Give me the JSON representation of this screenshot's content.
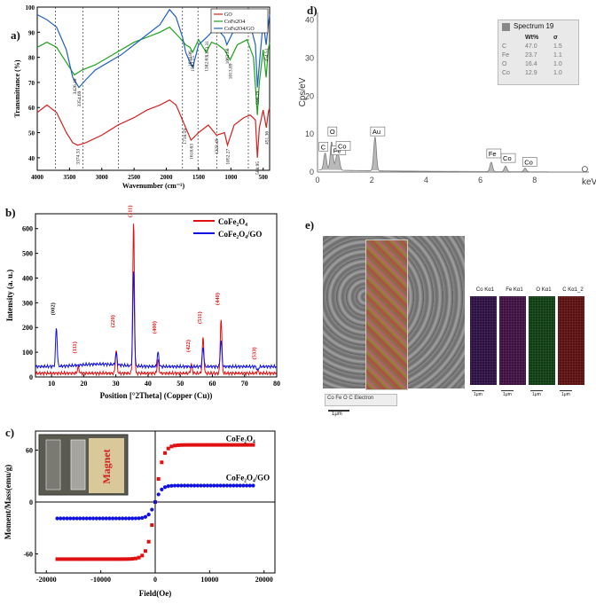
{
  "panels": {
    "a": "a)",
    "b": "b)",
    "c": "c)",
    "d": "d)",
    "e": "e)"
  },
  "chart_data": [
    {
      "id": "a",
      "type": "line",
      "xlabel": "Wavenumber (cm⁻¹)",
      "ylabel": "Transmittance (%)",
      "xlim": [
        4000,
        400
      ],
      "ylim": [
        35,
        100
      ],
      "x_ticks": [
        4000,
        3500,
        3000,
        2500,
        2000,
        1500,
        1000,
        500
      ],
      "y_ticks": [
        40,
        50,
        60,
        70,
        80,
        90,
        100
      ],
      "legend": [
        "GO",
        "CoFe2O4",
        "CoFe2O4/GO"
      ],
      "dashed_lines": [
        3720,
        3290,
        2740,
        1750,
        1510,
        1220,
        730
      ],
      "series": [
        {
          "name": "GO",
          "color": "#d62020",
          "points": [
            [
              4000,
              58
            ],
            [
              3850,
              61
            ],
            [
              3700,
              58
            ],
            [
              3550,
              50
            ],
            [
              3450,
              46
            ],
            [
              3374,
              45
            ],
            [
              3250,
              46
            ],
            [
              3000,
              49
            ],
            [
              2750,
              53
            ],
            [
              2500,
              56
            ],
            [
              2300,
              59
            ],
            [
              2100,
              61
            ],
            [
              1950,
              63
            ],
            [
              1850,
              61
            ],
            [
              1750,
              55
            ],
            [
              1718,
              53
            ],
            [
              1650,
              49
            ],
            [
              1618,
              47
            ],
            [
              1500,
              50
            ],
            [
              1350,
              53
            ],
            [
              1222,
              49
            ],
            [
              1100,
              50
            ],
            [
              1052,
              45
            ],
            [
              950,
              53
            ],
            [
              800,
              56
            ],
            [
              700,
              57
            ],
            [
              620,
              55
            ],
            [
              589,
              40
            ],
            [
              560,
              52
            ],
            [
              500,
              59
            ],
            [
              451,
              52
            ],
            [
              420,
              58
            ],
            [
              400,
              60
            ]
          ]
        },
        {
          "name": "CoFe2O4",
          "color": "#1aa21a",
          "points": [
            [
              4000,
              84
            ],
            [
              3850,
              86
            ],
            [
              3700,
              84
            ],
            [
              3550,
              78
            ],
            [
              3426,
              73
            ],
            [
              3300,
              75
            ],
            [
              3100,
              77
            ],
            [
              2900,
              80
            ],
            [
              2700,
              83
            ],
            [
              2500,
              86
            ],
            [
              2300,
              88
            ],
            [
              2100,
              90
            ],
            [
              1950,
              92
            ],
            [
              1800,
              88
            ],
            [
              1700,
              85
            ],
            [
              1634,
              84
            ],
            [
              1593,
              82
            ],
            [
              1500,
              87
            ],
            [
              1383,
              82
            ],
            [
              1300,
              86
            ],
            [
              1200,
              85
            ],
            [
              1100,
              83
            ],
            [
              1013,
              79
            ],
            [
              900,
              85
            ],
            [
              750,
              87
            ],
            [
              650,
              80
            ],
            [
              590,
              57
            ],
            [
              560,
              70
            ],
            [
              500,
              83
            ],
            [
              454,
              72
            ],
            [
              420,
              83
            ],
            [
              400,
              86
            ]
          ]
        },
        {
          "name": "CoFe2O4/GO",
          "color": "#2060c0",
          "points": [
            [
              4000,
              97
            ],
            [
              3850,
              95
            ],
            [
              3700,
              92
            ],
            [
              3550,
              83
            ],
            [
              3450,
              72
            ],
            [
              3354,
              68
            ],
            [
              3250,
              71
            ],
            [
              3100,
              75
            ],
            [
              2900,
              78
            ],
            [
              2700,
              81
            ],
            [
              2500,
              85
            ],
            [
              2300,
              89
            ],
            [
              2100,
              93
            ],
            [
              1950,
              99
            ],
            [
              1850,
              96
            ],
            [
              1750,
              88
            ],
            [
              1700,
              82
            ],
            [
              1634,
              78
            ],
            [
              1590,
              76
            ],
            [
              1500,
              85
            ],
            [
              1373,
              88
            ],
            [
              1300,
              90
            ],
            [
              1200,
              91
            ],
            [
              1100,
              88
            ],
            [
              1062,
              85
            ],
            [
              950,
              91
            ],
            [
              800,
              95
            ],
            [
              700,
              93
            ],
            [
              620,
              85
            ],
            [
              590,
              68
            ],
            [
              550,
              80
            ],
            [
              500,
              94
            ],
            [
              454,
              85
            ],
            [
              420,
              93
            ],
            [
              400,
              97
            ]
          ]
        }
      ],
      "annotations": [
        {
          "text": "3426.40",
          "x": 3426,
          "y": 73
        },
        {
          "text": "3354.69",
          "x": 3354,
          "y": 68
        },
        {
          "text": "3374.33",
          "x": 3374,
          "y": 45
        },
        {
          "text": "1634.86",
          "x": 1634,
          "y": 84
        },
        {
          "text": "1593.15",
          "x": 1593,
          "y": 82
        },
        {
          "text": "1373.31",
          "x": 1373,
          "y": 88
        },
        {
          "text": "1382.63",
          "x": 1383,
          "y": 82
        },
        {
          "text": "1062.68",
          "x": 1062,
          "y": 85
        },
        {
          "text": "1013.89",
          "x": 1013,
          "y": 79
        },
        {
          "text": "590.29",
          "x": 590,
          "y": 68
        },
        {
          "text": "454.51",
          "x": 454,
          "y": 85
        },
        {
          "text": "1718.59",
          "x": 1718,
          "y": 53
        },
        {
          "text": "1618.63",
          "x": 1618,
          "y": 47
        },
        {
          "text": "1222.49",
          "x": 1222,
          "y": 49
        },
        {
          "text": "1052.27",
          "x": 1052,
          "y": 45
        },
        {
          "text": "588.95",
          "x": 589,
          "y": 40
        },
        {
          "text": "451.36",
          "x": 451,
          "y": 52
        }
      ]
    },
    {
      "id": "b",
      "type": "line",
      "xlabel": "Position [°2Theta] (Copper (Cu))",
      "ylabel": "Intensity (a. u.)",
      "xlim": [
        5,
        80
      ],
      "ylim": [
        0,
        660
      ],
      "x_ticks": [
        10,
        20,
        30,
        40,
        50,
        60,
        70,
        80
      ],
      "y_ticks": [
        0,
        100,
        200,
        300,
        400,
        500,
        600
      ],
      "legend": [
        "CoFe₂O₄",
        "CoFe₂O₄/GO"
      ],
      "series": [
        {
          "name": "CoFe₂O₄",
          "color": "#e01010",
          "peaks": [
            [
              18.3,
              40
            ],
            [
              30.1,
              110
            ],
            [
              35.5,
              630
            ],
            [
              43.1,
              70
            ],
            [
              53.5,
              50
            ],
            [
              57.1,
              160
            ],
            [
              62.7,
              240
            ],
            [
              74.1,
              25
            ]
          ],
          "baseline": 15
        },
        {
          "name": "CoFe₂O₄/GO",
          "color": "#1010e0",
          "peaks": [
            [
              11.5,
              200
            ],
            [
              18.3,
              40
            ],
            [
              30.1,
              90
            ],
            [
              35.5,
              430
            ],
            [
              43.1,
              100
            ],
            [
              53.5,
              40
            ],
            [
              57.1,
              120
            ],
            [
              62.7,
              150
            ],
            [
              74.1,
              25
            ]
          ],
          "baseline": 42
        }
      ],
      "annotations": [
        {
          "text": "(002)",
          "x": 11.5,
          "y": 250,
          "color": "#111"
        },
        {
          "text": "(111)",
          "x": 18.3,
          "y": 95,
          "color": "#e01010"
        },
        {
          "text": "(220)",
          "x": 30.1,
          "y": 200,
          "color": "#e01010"
        },
        {
          "text": "(311)",
          "x": 35.5,
          "y": 645,
          "color": "#e01010"
        },
        {
          "text": "(400)",
          "x": 43.1,
          "y": 175,
          "color": "#e01010"
        },
        {
          "text": "(422)",
          "x": 53.5,
          "y": 100,
          "color": "#e01010"
        },
        {
          "text": "(511)",
          "x": 57.1,
          "y": 215,
          "color": "#e01010"
        },
        {
          "text": "(440)",
          "x": 62.7,
          "y": 290,
          "color": "#e01010"
        },
        {
          "text": "(533)",
          "x": 74.1,
          "y": 70,
          "color": "#e01010"
        }
      ]
    },
    {
      "id": "c",
      "type": "scatter",
      "xlabel": "Field(Oe)",
      "ylabel": "Moment/Mass(emu/g)",
      "xlim": [
        -22000,
        22000
      ],
      "ylim": [
        -82,
        82
      ],
      "x_ticks": [
        -20000,
        -10000,
        0,
        10000,
        20000
      ],
      "y_ticks": [
        -60,
        0,
        60
      ],
      "series": [
        {
          "name": "CoFe₂O₄",
          "color": "#e01010",
          "marker": "square",
          "ms": 66,
          "k": 1400,
          "range": [
            -18000,
            18000
          ],
          "label": "CoFe₂O₄"
        },
        {
          "name": "CoFe₂O₄/GO",
          "color": "#1010e0",
          "marker": "circle",
          "ms": 19,
          "k": 1200,
          "range": [
            -18000,
            18000
          ],
          "label": "CoFe₂O₄/GO"
        }
      ],
      "inset_text": "Magnet"
    },
    {
      "id": "d",
      "type": "line",
      "xlabel": "keV",
      "ylabel": "Cps/eV",
      "xlim": [
        0,
        10
      ],
      "ylim": [
        0,
        42
      ],
      "x_ticks": [
        0,
        2,
        4,
        6,
        8
      ],
      "y_ticks": [
        0,
        10,
        20,
        30,
        40
      ],
      "peaks": [
        {
          "label": "C",
          "x": 0.28,
          "y": 4.5
        },
        {
          "label": "O",
          "x": 0.52,
          "y": 7.5
        },
        {
          "label": "Fe",
          "x": 0.7,
          "y": 3
        },
        {
          "label": "Co",
          "x": 0.78,
          "y": 3
        },
        {
          "label": "Au",
          "x": 2.12,
          "y": 9
        },
        {
          "label": "Fe",
          "x": 6.4,
          "y": 2.5
        },
        {
          "label": "Co",
          "x": 6.93,
          "y": 1.5
        },
        {
          "label": "Co",
          "x": 7.65,
          "y": 1
        }
      ],
      "table": {
        "title": "Spectrum 19",
        "headers": [
          "",
          "Wt%",
          "σ"
        ],
        "rows": [
          [
            "C",
            "47.0",
            "1.5"
          ],
          [
            "Fe",
            "23.7",
            "1.1"
          ],
          [
            "O",
            "16.4",
            "1.0"
          ],
          [
            "Co",
            "12.9",
            "1.0"
          ]
        ]
      }
    }
  ],
  "panel_e": {
    "maps": [
      {
        "label": "Co Kα1",
        "color": "#2a0f40"
      },
      {
        "label": "Fe Kα1",
        "color": "#3d1040"
      },
      {
        "label": "O Kα1",
        "color": "#0f3d12"
      },
      {
        "label": "C Kα1_2",
        "color": "#5a0f10"
      }
    ],
    "scale": "1μm",
    "legend": [
      "Co",
      "Fe",
      "O",
      "C",
      "Electron"
    ]
  }
}
